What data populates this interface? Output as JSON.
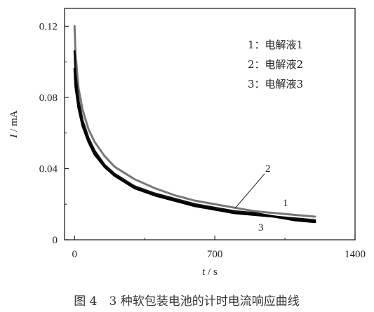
{
  "chart_data": {
    "type": "line",
    "xlabel": "t / s",
    "ylabel": "I / mA",
    "xlim": [
      -50,
      1400
    ],
    "ylim": [
      0,
      0.13
    ],
    "x_ticks": [
      0,
      700,
      1400
    ],
    "x_tick_labels": [
      "0",
      "700",
      "1400"
    ],
    "y_ticks": [
      0,
      0.04,
      0.08,
      0.12
    ],
    "y_tick_labels": [
      "0",
      "0.04",
      "0.08",
      "0.12"
    ],
    "grid": false,
    "legend_entries": [
      "1：电解液1",
      "2：电解液2",
      "3：电解液3"
    ],
    "legend_placement": "top-right",
    "caption": "图 4　3 种软包装电池的计时电流响应曲线",
    "series": [
      {
        "id": "1",
        "color": "#111111",
        "x": [
          0,
          5,
          20,
          40,
          70,
          100,
          150,
          200,
          300,
          400,
          500,
          600,
          700,
          800,
          900,
          1000,
          1100,
          1200
        ],
        "y": [
          0.106,
          0.093,
          0.078,
          0.067,
          0.057,
          0.05,
          0.042,
          0.037,
          0.03,
          0.026,
          0.023,
          0.02,
          0.018,
          0.016,
          0.015,
          0.013,
          0.012,
          0.011
        ]
      },
      {
        "id": "2",
        "color": "#777777",
        "x": [
          0,
          5,
          20,
          40,
          70,
          100,
          150,
          200,
          300,
          400,
          500,
          600,
          700,
          800,
          900,
          1000,
          1100,
          1200
        ],
        "y": [
          0.12,
          0.104,
          0.085,
          0.073,
          0.062,
          0.055,
          0.047,
          0.041,
          0.034,
          0.029,
          0.025,
          0.022,
          0.02,
          0.018,
          0.016,
          0.015,
          0.014,
          0.013
        ]
      },
      {
        "id": "3",
        "color": "#000000",
        "x": [
          0,
          5,
          20,
          40,
          70,
          100,
          150,
          200,
          300,
          400,
          500,
          600,
          700,
          800,
          900,
          1000,
          1100,
          1200
        ],
        "y": [
          0.096,
          0.086,
          0.074,
          0.064,
          0.055,
          0.048,
          0.041,
          0.036,
          0.029,
          0.025,
          0.022,
          0.019,
          0.017,
          0.015,
          0.014,
          0.013,
          0.011,
          0.01
        ]
      }
    ],
    "annotations": [
      {
        "text": "1",
        "target_series": "1"
      },
      {
        "text": "2",
        "target_series": "2"
      },
      {
        "text": "3",
        "target_series": "3"
      }
    ]
  }
}
